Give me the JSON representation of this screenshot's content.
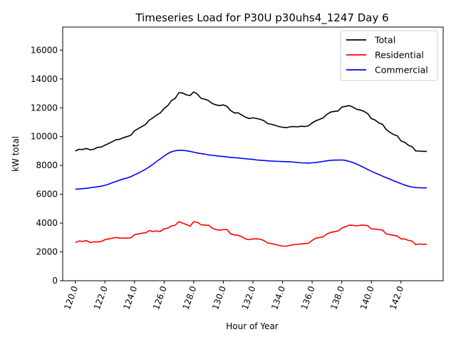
{
  "chart_data": {
    "type": "line",
    "title": "Timeseries Load for P30U p30uhs4_1247  Day 6",
    "xlabel": "Hour of Year",
    "ylabel": "kW total",
    "xlim": [
      119.15,
      144.85
    ],
    "ylim": [
      0,
      17600
    ],
    "x_ticks": [
      120,
      122,
      124,
      126,
      128,
      130,
      132,
      134,
      136,
      138,
      140,
      142
    ],
    "x_tick_labels": [
      "120.0",
      "122.0",
      "124.0",
      "126.0",
      "128.0",
      "130.0",
      "132.0",
      "134.0",
      "136.0",
      "138.0",
      "140.0",
      "142.0"
    ],
    "y_ticks": [
      0,
      2000,
      4000,
      6000,
      8000,
      10000,
      12000,
      14000,
      16000
    ],
    "y_tick_labels": [
      "0",
      "2000",
      "4000",
      "6000",
      "8000",
      "10000",
      "12000",
      "14000",
      "16000"
    ],
    "legend_position": "top-right",
    "x": [
      120.0,
      120.25,
      120.5,
      120.75,
      121.0,
      121.25,
      121.5,
      121.75,
      122.0,
      122.25,
      122.5,
      122.75,
      123.0,
      123.25,
      123.5,
      123.75,
      124.0,
      124.25,
      124.5,
      124.75,
      125.0,
      125.25,
      125.5,
      125.75,
      126.0,
      126.25,
      126.5,
      126.75,
      127.0,
      127.25,
      127.5,
      127.75,
      128.0,
      128.25,
      128.5,
      128.75,
      129.0,
      129.25,
      129.5,
      129.75,
      130.0,
      130.25,
      130.5,
      130.75,
      131.0,
      131.25,
      131.5,
      131.75,
      132.0,
      132.25,
      132.5,
      132.75,
      133.0,
      133.25,
      133.5,
      133.75,
      134.0,
      134.25,
      134.5,
      134.75,
      135.0,
      135.25,
      135.5,
      135.75,
      136.0,
      136.25,
      136.5,
      136.75,
      137.0,
      137.25,
      137.5,
      137.75,
      138.0,
      138.25,
      138.5,
      138.75,
      139.0,
      139.25,
      139.5,
      139.75,
      140.0,
      140.25,
      140.5,
      140.75,
      141.0,
      141.25,
      141.5,
      141.75,
      142.0,
      142.25,
      142.5,
      142.75,
      143.0,
      143.25,
      143.5,
      143.75
    ],
    "series": [
      {
        "name": "Total",
        "color": "#000000",
        "values": [
          9000,
          9120,
          9100,
          9180,
          9080,
          9120,
          9250,
          9280,
          9400,
          9520,
          9650,
          9780,
          9820,
          9920,
          10000,
          10100,
          10400,
          10550,
          10700,
          10850,
          11150,
          11300,
          11500,
          11650,
          11950,
          12150,
          12500,
          12650,
          13050,
          13020,
          12900,
          12850,
          13100,
          12950,
          12650,
          12600,
          12500,
          12300,
          12200,
          12150,
          12200,
          12100,
          11800,
          11650,
          11650,
          11500,
          11350,
          11250,
          11300,
          11250,
          11200,
          11100,
          10900,
          10850,
          10780,
          10700,
          10650,
          10620,
          10680,
          10700,
          10680,
          10720,
          10700,
          10750,
          10950,
          11100,
          11200,
          11300,
          11550,
          11700,
          11750,
          11780,
          12050,
          12100,
          12150,
          12050,
          11900,
          11850,
          11750,
          11600,
          11250,
          11150,
          10950,
          10850,
          10500,
          10300,
          10150,
          10050,
          9700,
          9600,
          9400,
          9300,
          9000,
          9000,
          8980,
          8980
        ]
      },
      {
        "name": "Residential",
        "color": "#ff0000",
        "values": [
          2650,
          2760,
          2730,
          2790,
          2650,
          2700,
          2700,
          2720,
          2850,
          2900,
          2950,
          3000,
          2960,
          2950,
          2960,
          2970,
          3200,
          3250,
          3300,
          3320,
          3480,
          3420,
          3450,
          3420,
          3600,
          3650,
          3800,
          3850,
          4100,
          4000,
          3900,
          3780,
          4100,
          4050,
          3880,
          3850,
          3850,
          3650,
          3550,
          3500,
          3550,
          3550,
          3250,
          3180,
          3150,
          3050,
          2900,
          2850,
          2900,
          2900,
          2880,
          2780,
          2620,
          2580,
          2520,
          2450,
          2400,
          2400,
          2450,
          2500,
          2520,
          2550,
          2580,
          2600,
          2800,
          2950,
          3000,
          3050,
          3250,
          3350,
          3400,
          3450,
          3650,
          3750,
          3850,
          3850,
          3800,
          3850,
          3850,
          3820,
          3600,
          3580,
          3550,
          3520,
          3250,
          3200,
          3150,
          3100,
          2900,
          2900,
          2800,
          2750,
          2500,
          2550,
          2520,
          2530
        ]
      },
      {
        "name": "Commercial",
        "color": "#0000ff",
        "values": [
          6350,
          6370,
          6390,
          6410,
          6450,
          6480,
          6520,
          6560,
          6620,
          6700,
          6800,
          6880,
          6980,
          7060,
          7130,
          7220,
          7350,
          7460,
          7600,
          7740,
          7900,
          8080,
          8280,
          8460,
          8650,
          8820,
          8950,
          9020,
          9050,
          9040,
          9020,
          8980,
          8920,
          8860,
          8820,
          8780,
          8730,
          8700,
          8670,
          8640,
          8620,
          8590,
          8560,
          8540,
          8520,
          8490,
          8470,
          8440,
          8420,
          8380,
          8360,
          8340,
          8320,
          8300,
          8290,
          8280,
          8270,
          8260,
          8250,
          8230,
          8200,
          8180,
          8170,
          8160,
          8180,
          8200,
          8240,
          8280,
          8320,
          8350,
          8370,
          8370,
          8380,
          8350,
          8280,
          8200,
          8100,
          7980,
          7850,
          7720,
          7600,
          7480,
          7370,
          7260,
          7150,
          7050,
          6940,
          6840,
          6740,
          6640,
          6560,
          6500,
          6460,
          6450,
          6440,
          6440
        ]
      }
    ]
  }
}
